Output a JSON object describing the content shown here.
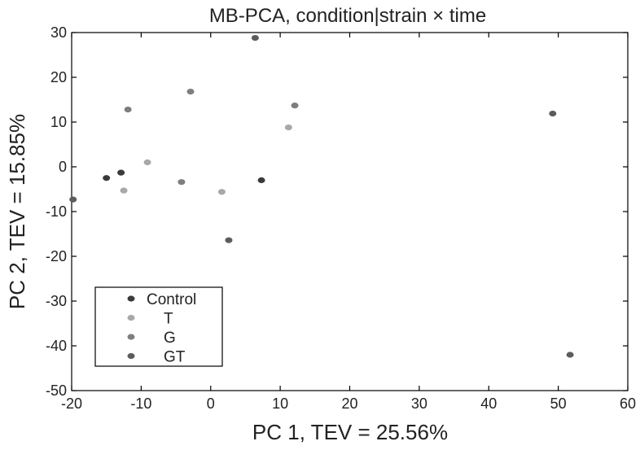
{
  "chart_data": {
    "type": "scatter",
    "title": "MB-PCA, condition|strain × time",
    "xlabel": "PC 1, TEV = 25.56%",
    "ylabel": "PC 2, TEV = 15.85%",
    "xlim": [
      -20,
      60
    ],
    "ylim": [
      -50,
      30
    ],
    "x_ticks": [
      -20,
      -10,
      0,
      10,
      20,
      30,
      40,
      50,
      60
    ],
    "y_ticks": [
      -50,
      -40,
      -30,
      -20,
      -10,
      0,
      10,
      20,
      30
    ],
    "grid": false,
    "legend": {
      "position": "bottom-left"
    },
    "series": [
      {
        "name": "Control",
        "color": "#3a3a3a",
        "points": [
          [
            -15.0,
            -2.5
          ],
          [
            -12.9,
            -1.3
          ],
          [
            7.3,
            -3.0
          ]
        ]
      },
      {
        "name": "T",
        "color": "#a8a8a8",
        "points": [
          [
            -12.5,
            -5.3
          ],
          [
            -9.1,
            1.0
          ],
          [
            1.6,
            -5.6
          ],
          [
            11.2,
            8.8
          ]
        ]
      },
      {
        "name": "G",
        "color": "#7e7e7e",
        "points": [
          [
            -11.9,
            12.8
          ],
          [
            -2.9,
            16.8
          ],
          [
            -4.2,
            -3.4
          ],
          [
            12.1,
            13.7
          ]
        ]
      },
      {
        "name": "GT",
        "color": "#5c5c5c",
        "points": [
          [
            -19.8,
            -7.3
          ],
          [
            6.4,
            28.8
          ],
          [
            2.6,
            -16.4
          ],
          [
            49.2,
            11.9
          ],
          [
            51.7,
            -42.0
          ]
        ]
      }
    ]
  }
}
